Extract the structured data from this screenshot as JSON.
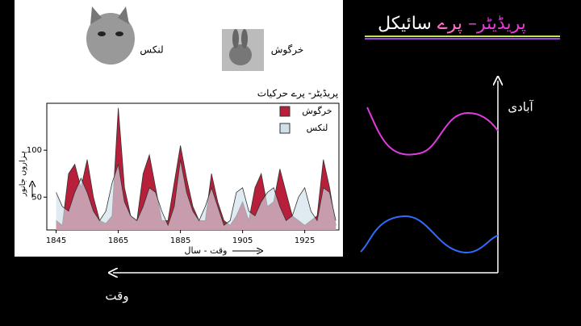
{
  "title_parts": [
    "پریڈیٹر–",
    "پرے",
    "سائیکل"
  ],
  "image_labels": [
    "لنکس",
    "خرگوش"
  ],
  "sketch": {
    "y_label": "آبادی",
    "x_label": "وقت"
  },
  "chart_data": {
    "type": "area",
    "title": "پریڈیٹر- پرے حرکیات",
    "x_label": "وقت - سال",
    "y_label": "ہزاروں جانور",
    "x": [
      1845,
      1847,
      1849,
      1851,
      1853,
      1855,
      1857,
      1859,
      1861,
      1863,
      1865,
      1867,
      1869,
      1871,
      1873,
      1875,
      1877,
      1879,
      1881,
      1883,
      1885,
      1887,
      1889,
      1891,
      1893,
      1895,
      1897,
      1899,
      1901,
      1903,
      1905,
      1907,
      1909,
      1911,
      1913,
      1915,
      1917,
      1919,
      1921,
      1923,
      1925,
      1927,
      1929,
      1931,
      1933,
      1935
    ],
    "series": [
      {
        "name": "خرگوش",
        "color": "#b71f3a",
        "values": [
          25,
          20,
          75,
          85,
          60,
          90,
          50,
          25,
          22,
          30,
          145,
          60,
          30,
          25,
          75,
          95,
          60,
          25,
          25,
          65,
          105,
          70,
          40,
          25,
          25,
          75,
          45,
          25,
          20,
          30,
          45,
          25,
          60,
          75,
          40,
          45,
          80,
          55,
          30,
          25,
          20,
          25,
          30,
          90,
          60,
          20
        ]
      },
      {
        "name": "لنکس",
        "color": "#cfe0ea",
        "values": [
          55,
          40,
          35,
          55,
          70,
          55,
          35,
          25,
          35,
          65,
          85,
          45,
          30,
          25,
          40,
          60,
          55,
          35,
          20,
          40,
          90,
          55,
          35,
          25,
          40,
          60,
          40,
          20,
          25,
          55,
          60,
          35,
          30,
          45,
          55,
          60,
          40,
          25,
          30,
          50,
          60,
          35,
          25,
          60,
          55,
          25
        ]
      }
    ],
    "xlim": [
      1842,
      1936
    ],
    "ylim": [
      15,
      150
    ],
    "xticks": [
      1845,
      1865,
      1885,
      1905,
      1925
    ],
    "yticks": [
      50,
      100
    ],
    "legend": "top-right"
  }
}
